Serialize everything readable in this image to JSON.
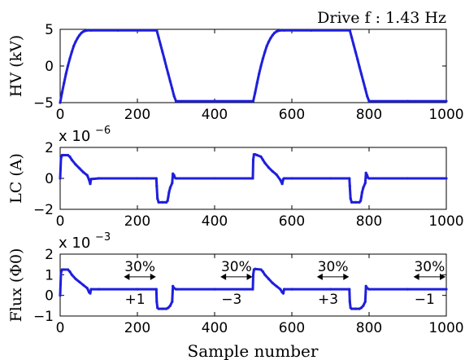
{
  "annotation_top": "Drive f : 1.43 Hz",
  "xlabel": "Sample number",
  "chart_data": [
    {
      "type": "line",
      "ylabel": "HV (kV)",
      "xlim": [
        0,
        1000
      ],
      "ylim": [
        -5,
        5
      ],
      "xticks": [
        0,
        200,
        400,
        600,
        800,
        1000
      ],
      "yticks": [
        -5,
        0,
        5
      ],
      "series_color": "#1f1fdc",
      "series": [
        {
          "x": [
            0,
            5,
            10,
            15,
            20,
            25,
            30,
            35,
            40,
            45,
            50,
            55,
            60,
            65,
            70,
            80,
            150,
            250,
            255,
            260,
            265,
            270,
            275,
            280,
            285,
            290,
            295,
            300,
            400,
            500,
            505,
            510,
            515,
            520,
            525,
            530,
            535,
            540,
            545,
            550,
            555,
            560,
            565,
            570,
            580,
            650,
            750,
            755,
            760,
            765,
            770,
            775,
            780,
            785,
            790,
            795,
            800,
            900,
            1000
          ],
          "y": [
            -5,
            -3.6,
            -2.3,
            -1.1,
            0,
            1.0,
            1.9,
            2.7,
            3.3,
            3.8,
            4.2,
            4.5,
            4.7,
            4.8,
            4.85,
            4.85,
            4.85,
            4.85,
            3.9,
            2.9,
            1.9,
            0.9,
            -0.1,
            -1.1,
            -2.1,
            -3.1,
            -4.1,
            -4.8,
            -4.8,
            -4.8,
            -3.6,
            -2.3,
            -1.1,
            0,
            1.0,
            1.9,
            2.7,
            3.3,
            3.8,
            4.2,
            4.5,
            4.7,
            4.8,
            4.85,
            4.85,
            4.85,
            4.85,
            3.9,
            2.9,
            1.9,
            0.9,
            -0.1,
            -1.1,
            -2.1,
            -3.1,
            -4.1,
            -4.8,
            -4.8,
            -4.8
          ]
        }
      ]
    },
    {
      "type": "line",
      "ylabel": "LC (A)",
      "yscale_label": "x 10",
      "yscale_exp": "−6",
      "xlim": [
        0,
        1000
      ],
      "ylim": [
        -2,
        2
      ],
      "xticks": [
        0,
        200,
        400,
        600,
        800,
        1000
      ],
      "yticks": [
        -2,
        0,
        2
      ],
      "series_color": "#1f1fdc",
      "series": [
        {
          "x": [
            0,
            2,
            5,
            10,
            20,
            25,
            30,
            40,
            50,
            60,
            70,
            75,
            78,
            80,
            100,
            200,
            249,
            250,
            252,
            255,
            265,
            275,
            278,
            280,
            282,
            285,
            290,
            292,
            295,
            297,
            300,
            400,
            499,
            500,
            502,
            505,
            510,
            520,
            525,
            530,
            540,
            550,
            560,
            570,
            575,
            578,
            580,
            600,
            700,
            749,
            750,
            752,
            755,
            765,
            775,
            778,
            780,
            782,
            785,
            790,
            792,
            795,
            797,
            800,
            900,
            1000
          ],
          "y": [
            0,
            1.3,
            1.5,
            1.5,
            1.5,
            1.4,
            1.2,
            0.9,
            0.65,
            0.4,
            0.2,
            -0.1,
            -0.35,
            -0.05,
            0,
            0,
            0,
            -0.5,
            -1.3,
            -1.55,
            -1.55,
            -1.55,
            -1.45,
            -1.2,
            -0.9,
            -0.6,
            -0.3,
            0.3,
            0.2,
            0.05,
            0,
            0,
            0,
            1.2,
            1.55,
            1.55,
            1.5,
            1.4,
            1.2,
            1.0,
            0.7,
            0.45,
            0.25,
            -0.1,
            -0.35,
            -0.05,
            0,
            0,
            0,
            0,
            -0.5,
            -1.3,
            -1.55,
            -1.55,
            -1.55,
            -1.45,
            -1.2,
            -0.9,
            -0.6,
            -0.3,
            0.35,
            0.2,
            0.05,
            0,
            0,
            0
          ]
        }
      ]
    },
    {
      "type": "line",
      "ylabel": "Flux (Φ0)",
      "yscale_label": "x 10",
      "yscale_exp": "−3",
      "xlim": [
        0,
        1000
      ],
      "ylim": [
        -1,
        2
      ],
      "xticks": [
        0,
        200,
        400,
        600,
        800,
        1000
      ],
      "yticks": [
        -1,
        0,
        1,
        2
      ],
      "series_color": "#1f1fdc",
      "series": [
        {
          "x": [
            0,
            2,
            5,
            10,
            20,
            25,
            30,
            40,
            50,
            60,
            70,
            75,
            78,
            80,
            100,
            200,
            249,
            250,
            252,
            255,
            265,
            275,
            280,
            285,
            290,
            292,
            295,
            300,
            400,
            499,
            500,
            502,
            505,
            520,
            525,
            530,
            540,
            550,
            560,
            570,
            575,
            578,
            580,
            600,
            700,
            749,
            750,
            752,
            755,
            765,
            775,
            780,
            785,
            790,
            792,
            795,
            800,
            900,
            1000
          ],
          "y": [
            0,
            1.1,
            1.25,
            1.25,
            1.25,
            1.15,
            1.0,
            0.8,
            0.65,
            0.5,
            0.35,
            0.15,
            0.1,
            0.3,
            0.3,
            0.3,
            0.3,
            -0.3,
            -0.6,
            -0.65,
            -0.65,
            -0.65,
            -0.6,
            -0.5,
            -0.3,
            0.45,
            0.35,
            0.3,
            0.3,
            0.3,
            1.0,
            1.25,
            1.28,
            1.25,
            1.15,
            1.0,
            0.8,
            0.6,
            0.45,
            0.3,
            0.15,
            0.1,
            0.3,
            0.3,
            0.3,
            0.3,
            -0.3,
            -0.6,
            -0.65,
            -0.65,
            -0.65,
            -0.6,
            -0.5,
            -0.3,
            0.45,
            0.35,
            0.3,
            0.3,
            0.3
          ]
        }
      ],
      "annotations": [
        {
          "pct": "30%",
          "sign": "+1",
          "x_from": 165,
          "x_to": 248
        },
        {
          "pct": "30%",
          "sign": "−3",
          "x_from": 415,
          "x_to": 498
        },
        {
          "pct": "30%",
          "sign": "+3",
          "x_from": 665,
          "x_to": 748
        },
        {
          "pct": "30%",
          "sign": "−1",
          "x_from": 915,
          "x_to": 998
        }
      ]
    }
  ]
}
